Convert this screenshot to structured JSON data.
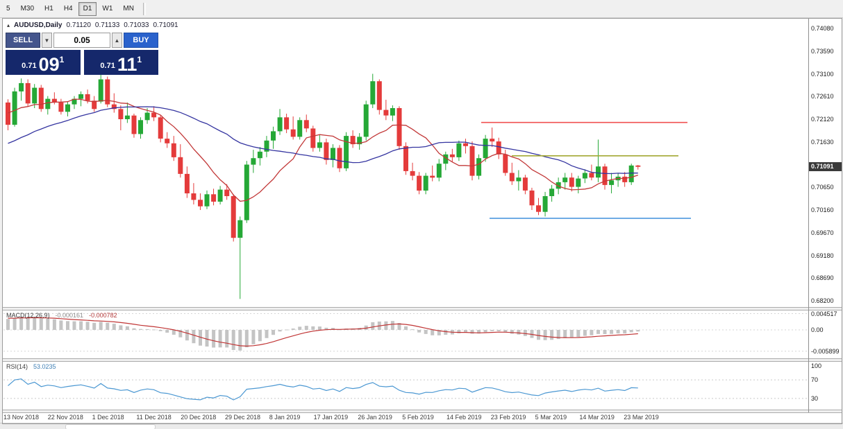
{
  "toolbar": {
    "timeframes": [
      "5",
      "M30",
      "H1",
      "H4",
      "D1",
      "W1",
      "MN"
    ],
    "active": "D1"
  },
  "icons": {
    "trade_panel_toggle": "▴",
    "volume_down": "▼",
    "volume_up": "▲"
  },
  "chart": {
    "symbol_header": "AUDUSD,Daily",
    "ohlc": {
      "open": "0.71120",
      "high": "0.71133",
      "low": "0.71033",
      "close": "0.71091"
    },
    "trade_panel": {
      "sell_label": "SELL",
      "buy_label": "BUY",
      "volume": "0.05",
      "sell_price": {
        "small": "0.71",
        "big": "09",
        "sup": "1"
      },
      "buy_price": {
        "small": "0.71",
        "big": "11",
        "sup": "1"
      }
    },
    "price_axis": [
      "0.74080",
      "0.73590",
      "0.73100",
      "0.72610",
      "0.72120",
      "0.71630",
      "0.71140",
      "0.70650",
      "0.70160",
      "0.69670",
      "0.69180",
      "0.68690",
      "0.68200"
    ],
    "price_badge": "0.71091",
    "date_axis": [
      "13 Nov 2018",
      "22 Nov 2018",
      "1 Dec 2018",
      "11 Dec 2018",
      "20 Dec 2018",
      "29 Dec 2018",
      "8 Jan 2019",
      "17 Jan 2019",
      "26 Jan 2019",
      "5 Feb 2019",
      "14 Feb 2019",
      "23 Feb 2019",
      "5 Mar 2019",
      "14 Mar 2019",
      "23 Mar 2019"
    ]
  },
  "macd": {
    "label": "MACD(12,26,9)",
    "values": [
      "-0.000161",
      "-0.000782"
    ],
    "axis": [
      "0.004517",
      "0.00",
      "-0.005899"
    ]
  },
  "rsi": {
    "label": "RSI(14)",
    "value": "53.0235",
    "axis": [
      "100",
      "70",
      "30"
    ]
  },
  "chart_data": {
    "type": "candlestick",
    "symbol": "AUDUSD",
    "timeframe": "Daily",
    "price_axis_range": [
      0.682,
      0.7408
    ],
    "candles": [
      [
        "2018-11-13",
        0.7248,
        0.7255,
        0.7188,
        0.72
      ],
      [
        "2018-11-14",
        0.72,
        0.728,
        0.7196,
        0.7272
      ],
      [
        "2018-11-15",
        0.7272,
        0.73,
        0.7252,
        0.729
      ],
      [
        "2018-11-16",
        0.729,
        0.7298,
        0.724,
        0.7246
      ],
      [
        "2018-11-19",
        0.7246,
        0.7288,
        0.7236,
        0.728
      ],
      [
        "2018-11-20",
        0.728,
        0.7286,
        0.7228,
        0.7234
      ],
      [
        "2018-11-21",
        0.7234,
        0.7262,
        0.7222,
        0.7256
      ],
      [
        "2018-11-22",
        0.7256,
        0.727,
        0.7244,
        0.7248
      ],
      [
        "2018-11-23",
        0.7248,
        0.7256,
        0.7222,
        0.7228
      ],
      [
        "2018-11-26",
        0.7228,
        0.725,
        0.7218,
        0.7244
      ],
      [
        "2018-11-27",
        0.7244,
        0.7262,
        0.7234,
        0.7256
      ],
      [
        "2018-11-28",
        0.7256,
        0.7272,
        0.724,
        0.7266
      ],
      [
        "2018-11-29",
        0.7266,
        0.7276,
        0.7246,
        0.7252
      ],
      [
        "2018-11-30",
        0.7252,
        0.7262,
        0.7228,
        0.7234
      ],
      [
        "2018-12-03",
        0.725,
        0.731,
        0.7246,
        0.7298
      ],
      [
        "2018-12-04",
        0.7298,
        0.7304,
        0.7238,
        0.7244
      ],
      [
        "2018-12-05",
        0.7244,
        0.7268,
        0.7226,
        0.7234
      ],
      [
        "2018-12-06",
        0.7234,
        0.7242,
        0.7188,
        0.7212
      ],
      [
        "2018-12-07",
        0.7212,
        0.7248,
        0.7204,
        0.722
      ],
      [
        "2018-12-10",
        0.722,
        0.7224,
        0.7172,
        0.718
      ],
      [
        "2018-12-11",
        0.718,
        0.7216,
        0.717,
        0.721
      ],
      [
        "2018-12-12",
        0.721,
        0.7236,
        0.7202,
        0.7226
      ],
      [
        "2018-12-13",
        0.7226,
        0.724,
        0.7208,
        0.7216
      ],
      [
        "2018-12-14",
        0.7216,
        0.722,
        0.7162,
        0.717
      ],
      [
        "2018-12-17",
        0.717,
        0.7184,
        0.715,
        0.716
      ],
      [
        "2018-12-18",
        0.716,
        0.7176,
        0.7122,
        0.713
      ],
      [
        "2018-12-19",
        0.713,
        0.7158,
        0.7086,
        0.7094
      ],
      [
        "2018-12-20",
        0.7094,
        0.711,
        0.7042,
        0.7052
      ],
      [
        "2018-12-21",
        0.7052,
        0.7074,
        0.7028,
        0.7038
      ],
      [
        "2018-12-24",
        0.7038,
        0.7052,
        0.7016,
        0.7024
      ],
      [
        "2018-12-26",
        0.7024,
        0.7058,
        0.7018,
        0.705
      ],
      [
        "2018-12-27",
        0.705,
        0.7062,
        0.7026,
        0.7034
      ],
      [
        "2018-12-28",
        0.7034,
        0.7068,
        0.7028,
        0.706
      ],
      [
        "2018-12-31",
        0.706,
        0.7072,
        0.7038,
        0.7046
      ],
      [
        "2019-01-02",
        0.7046,
        0.705,
        0.6948,
        0.6956
      ],
      [
        "2019-01-03",
        0.6956,
        0.7002,
        0.6824,
        0.6994
      ],
      [
        "2019-01-04",
        0.6994,
        0.7122,
        0.6988,
        0.7114
      ],
      [
        "2019-01-07",
        0.7114,
        0.7146,
        0.7096,
        0.7128
      ],
      [
        "2019-01-08",
        0.7128,
        0.7152,
        0.7112,
        0.7142
      ],
      [
        "2019-01-09",
        0.7142,
        0.7176,
        0.713,
        0.7166
      ],
      [
        "2019-01-10",
        0.7166,
        0.7196,
        0.7148,
        0.7186
      ],
      [
        "2019-01-11",
        0.7186,
        0.7234,
        0.7178,
        0.7216
      ],
      [
        "2019-01-14",
        0.7216,
        0.7224,
        0.7182,
        0.719
      ],
      [
        "2019-01-15",
        0.719,
        0.7218,
        0.7168,
        0.7174
      ],
      [
        "2019-01-16",
        0.7174,
        0.7216,
        0.7168,
        0.721
      ],
      [
        "2019-01-17",
        0.721,
        0.7222,
        0.7184,
        0.7192
      ],
      [
        "2019-01-18",
        0.7192,
        0.7198,
        0.7142,
        0.715
      ],
      [
        "2019-01-21",
        0.715,
        0.7178,
        0.7142,
        0.7162
      ],
      [
        "2019-01-22",
        0.7162,
        0.717,
        0.7114,
        0.7124
      ],
      [
        "2019-01-23",
        0.7124,
        0.7158,
        0.7108,
        0.715
      ],
      [
        "2019-01-24",
        0.715,
        0.7156,
        0.7098,
        0.7106
      ],
      [
        "2019-01-25",
        0.7106,
        0.7184,
        0.71,
        0.7176
      ],
      [
        "2019-01-28",
        0.7176,
        0.7188,
        0.715,
        0.7158
      ],
      [
        "2019-01-29",
        0.7158,
        0.7182,
        0.7146,
        0.7174
      ],
      [
        "2019-01-30",
        0.7174,
        0.7252,
        0.7166,
        0.7244
      ],
      [
        "2019-01-31",
        0.7244,
        0.731,
        0.7236,
        0.7294
      ],
      [
        "2019-02-01",
        0.7294,
        0.7298,
        0.7222,
        0.7232
      ],
      [
        "2019-02-04",
        0.7232,
        0.7254,
        0.721,
        0.722
      ],
      [
        "2019-02-05",
        0.722,
        0.7242,
        0.7208,
        0.7236
      ],
      [
        "2019-02-06",
        0.7236,
        0.724,
        0.7146,
        0.7154
      ],
      [
        "2019-02-07",
        0.7154,
        0.7162,
        0.7092,
        0.71
      ],
      [
        "2019-02-08",
        0.71,
        0.7118,
        0.708,
        0.709
      ],
      [
        "2019-02-11",
        0.709,
        0.7098,
        0.705,
        0.7058
      ],
      [
        "2019-02-12",
        0.7058,
        0.7096,
        0.705,
        0.709
      ],
      [
        "2019-02-13",
        0.709,
        0.7112,
        0.7078,
        0.7086
      ],
      [
        "2019-02-14",
        0.7086,
        0.7126,
        0.7078,
        0.7116
      ],
      [
        "2019-02-15",
        0.7116,
        0.7142,
        0.7102,
        0.7136
      ],
      [
        "2019-02-18",
        0.7136,
        0.7148,
        0.712,
        0.713
      ],
      [
        "2019-02-19",
        0.713,
        0.7166,
        0.7122,
        0.716
      ],
      [
        "2019-02-20",
        0.716,
        0.717,
        0.7138,
        0.7154
      ],
      [
        "2019-02-21",
        0.7154,
        0.7164,
        0.708,
        0.709
      ],
      [
        "2019-02-22",
        0.709,
        0.7136,
        0.7082,
        0.7128
      ],
      [
        "2019-02-25",
        0.7128,
        0.7178,
        0.712,
        0.717
      ],
      [
        "2019-02-26",
        0.717,
        0.7194,
        0.7152,
        0.7164
      ],
      [
        "2019-02-27",
        0.7164,
        0.7172,
        0.7126,
        0.7136
      ],
      [
        "2019-02-28",
        0.7136,
        0.7146,
        0.709,
        0.7096
      ],
      [
        "2019-03-01",
        0.7096,
        0.7118,
        0.707,
        0.7078
      ],
      [
        "2019-03-04",
        0.7078,
        0.7102,
        0.7058,
        0.7086
      ],
      [
        "2019-03-05",
        0.7086,
        0.7092,
        0.705,
        0.7058
      ],
      [
        "2019-03-06",
        0.7058,
        0.7064,
        0.7016,
        0.7026
      ],
      [
        "2019-03-07",
        0.7026,
        0.7042,
        0.7005,
        0.7012
      ],
      [
        "2019-03-08",
        0.7012,
        0.7055,
        0.7002,
        0.7046
      ],
      [
        "2019-03-11",
        0.7046,
        0.707,
        0.7034,
        0.7062
      ],
      [
        "2019-03-12",
        0.7062,
        0.7086,
        0.705,
        0.7076
      ],
      [
        "2019-03-13",
        0.7076,
        0.7096,
        0.706,
        0.7086
      ],
      [
        "2019-03-14",
        0.7086,
        0.7096,
        0.7056,
        0.7066
      ],
      [
        "2019-03-15",
        0.7066,
        0.709,
        0.7052,
        0.7084
      ],
      [
        "2019-03-18",
        0.7084,
        0.7104,
        0.7074,
        0.7096
      ],
      [
        "2019-03-19",
        0.7096,
        0.7114,
        0.708,
        0.7086
      ],
      [
        "2019-03-20",
        0.7086,
        0.7168,
        0.7076,
        0.711
      ],
      [
        "2019-03-21",
        0.711,
        0.7116,
        0.706,
        0.707
      ],
      [
        "2019-03-22",
        0.707,
        0.7096,
        0.7052,
        0.708
      ],
      [
        "2019-03-25",
        0.708,
        0.7096,
        0.7066,
        0.7088
      ],
      [
        "2019-03-26",
        0.7088,
        0.7098,
        0.7066,
        0.7076
      ],
      [
        "2019-03-27",
        0.7076,
        0.7116,
        0.707,
        0.7112
      ],
      [
        "2019-03-28",
        0.7112,
        0.71133,
        0.71033,
        0.71091
      ]
    ],
    "indicator_warmup_closes": [
      0.708,
      0.7095,
      0.7085,
      0.707,
      0.7062,
      0.7075,
      0.709,
      0.7105,
      0.7118,
      0.7112,
      0.7104,
      0.7124,
      0.7138,
      0.7132,
      0.7148,
      0.7166,
      0.7158,
      0.7178,
      0.7192,
      0.7184,
      0.7202,
      0.7216,
      0.723,
      0.7222,
      0.7238,
      0.723,
      0.7221,
      0.7234,
      0.7228,
      0.7235
    ],
    "moving_averages": [
      {
        "type": "sma",
        "period": 10,
        "color": "#c23838"
      },
      {
        "type": "sma",
        "period": 30,
        "color": "#3434a0"
      }
    ],
    "h_lines": [
      {
        "name": "resistance-line-red",
        "price": 0.7205,
        "x1": 0.594,
        "x2": 0.85,
        "color": "#f05050"
      },
      {
        "name": "mid-line-olive",
        "price": 0.7133,
        "x1": 0.632,
        "x2": 0.839,
        "color": "#a2a832"
      },
      {
        "name": "support-line-blue",
        "price": 0.6998,
        "x1": 0.604,
        "x2": 0.854,
        "color": "#3f8fdc"
      }
    ],
    "macd_settings": {
      "fast": 12,
      "slow": 26,
      "signal": 9,
      "hist_color": "#c4c4c4",
      "signal_color": "#c03434"
    },
    "rsi_settings": {
      "period": 14,
      "color": "#4a97d2",
      "levels": [
        70,
        30
      ]
    },
    "colors": {
      "bull": "#25a836",
      "bear": "#e43b3b",
      "badge_bg": "#3a3a3a",
      "sell_button": "#44558c",
      "buy_button": "#2a62cc",
      "price_box": "#15286b"
    }
  }
}
